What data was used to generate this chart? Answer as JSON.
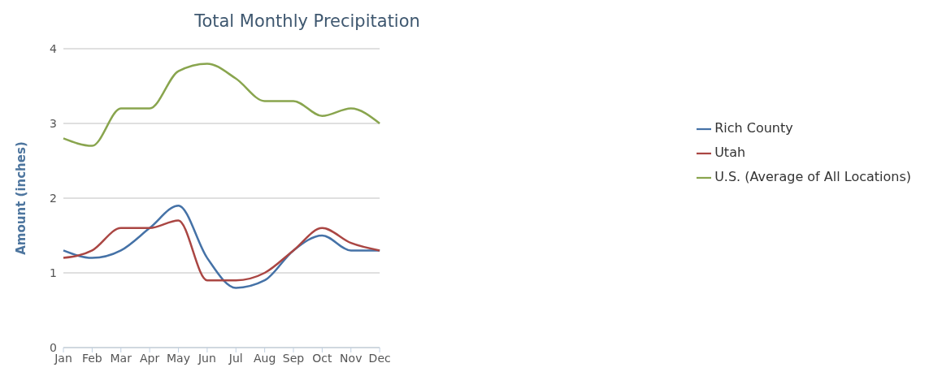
{
  "chart_data": {
    "type": "line",
    "title": "Total Monthly Precipitation",
    "ylabel": "Amount (inches)",
    "categories": [
      "Jan",
      "Feb",
      "Mar",
      "Apr",
      "May",
      "Jun",
      "Jul",
      "Aug",
      "Sep",
      "Oct",
      "Nov",
      "Dec"
    ],
    "series": [
      {
        "name": "Rich County",
        "color": "#4572a7",
        "values": [
          1.3,
          1.2,
          1.3,
          1.6,
          1.9,
          1.2,
          0.8,
          0.9,
          1.3,
          1.5,
          1.3,
          1.3
        ]
      },
      {
        "name": "Utah",
        "color": "#aa4643",
        "values": [
          1.2,
          1.3,
          1.6,
          1.6,
          1.7,
          0.9,
          0.9,
          1.0,
          1.3,
          1.6,
          1.4,
          1.3
        ]
      },
      {
        "name": "U.S. (Average of All Locations)",
        "color": "#89a54e",
        "values": [
          2.8,
          2.7,
          3.2,
          3.2,
          3.7,
          3.8,
          3.6,
          3.3,
          3.3,
          3.1,
          3.2,
          3.0
        ]
      }
    ],
    "ylim": [
      0,
      4
    ],
    "yticks": [
      0,
      1,
      2,
      3,
      4
    ],
    "grid": "y",
    "legend": "right",
    "marker": "none",
    "line_style": "solid"
  }
}
